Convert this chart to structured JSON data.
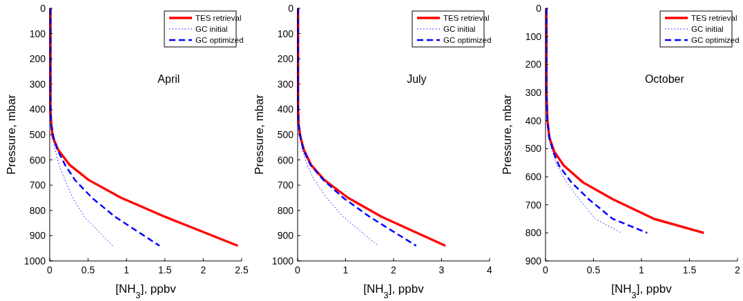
{
  "chart_data": [
    {
      "type": "line",
      "title": "April",
      "xlabel": "[NH$_{3}$], ppbv",
      "ylabel": "Pressure, mbar",
      "xlim": [
        0,
        2.5
      ],
      "xticks": [
        0,
        0.5,
        1,
        1.5,
        2,
        2.5
      ],
      "ylim": [
        1000,
        0
      ],
      "yticks": [
        0,
        100,
        200,
        300,
        400,
        500,
        600,
        700,
        800,
        900,
        1000
      ],
      "grid": false,
      "legend": "top right",
      "series": [
        {
          "name": "TES retrieval",
          "color": "#ff0000",
          "line_style": "solid",
          "x": [
            0.01,
            0.01,
            0.01,
            0.01,
            0.01,
            0.02,
            0.04,
            0.11,
            0.26,
            0.51,
            0.93,
            1.5,
            2.45
          ],
          "values": [
            0,
            100,
            200,
            300,
            400,
            460,
            510,
            560,
            620,
            680,
            750,
            825,
            940
          ]
        },
        {
          "name": "GC initial",
          "color": "#0000ff",
          "line_style": "dotted",
          "x": [
            0.01,
            0.01,
            0.01,
            0.01,
            0.01,
            0.02,
            0.04,
            0.07,
            0.12,
            0.2,
            0.3,
            0.45,
            0.82
          ],
          "values": [
            0,
            100,
            200,
            300,
            400,
            460,
            510,
            560,
            620,
            680,
            750,
            825,
            940
          ]
        },
        {
          "name": "GC optimized",
          "color": "#0000ff",
          "line_style": "dashed",
          "x": [
            0.01,
            0.01,
            0.01,
            0.01,
            0.01,
            0.02,
            0.05,
            0.1,
            0.2,
            0.33,
            0.55,
            0.85,
            1.43
          ],
          "values": [
            0,
            100,
            200,
            300,
            400,
            460,
            510,
            560,
            620,
            680,
            750,
            825,
            940
          ]
        }
      ]
    },
    {
      "type": "line",
      "title": "July",
      "xlabel": "[NH$_{3}$], ppbv",
      "ylabel": "Pressure, mbar",
      "xlim": [
        0,
        4
      ],
      "xticks": [
        0,
        1,
        2,
        3,
        4
      ],
      "ylim": [
        1000,
        0
      ],
      "yticks": [
        0,
        100,
        200,
        300,
        400,
        500,
        600,
        700,
        800,
        900,
        1000
      ],
      "grid": false,
      "legend": "top right",
      "series": [
        {
          "name": "TES retrieval",
          "color": "#ff0000",
          "line_style": "solid",
          "x": [
            0.01,
            0.01,
            0.01,
            0.01,
            0.01,
            0.02,
            0.06,
            0.13,
            0.28,
            0.56,
            1.05,
            1.75,
            3.08
          ],
          "values": [
            0,
            100,
            200,
            300,
            400,
            460,
            510,
            560,
            620,
            680,
            750,
            825,
            940
          ]
        },
        {
          "name": "GC initial",
          "color": "#0000ff",
          "line_style": "dotted",
          "x": [
            0.01,
            0.01,
            0.01,
            0.01,
            0.01,
            0.02,
            0.05,
            0.1,
            0.2,
            0.35,
            0.6,
            0.95,
            1.68
          ],
          "values": [
            0,
            100,
            200,
            300,
            400,
            460,
            510,
            560,
            620,
            680,
            750,
            825,
            940
          ]
        },
        {
          "name": "GC optimized",
          "color": "#0000ff",
          "line_style": "dashed",
          "x": [
            0.01,
            0.01,
            0.01,
            0.01,
            0.01,
            0.02,
            0.06,
            0.12,
            0.27,
            0.54,
            0.95,
            1.5,
            2.47
          ],
          "values": [
            0,
            100,
            200,
            300,
            400,
            460,
            510,
            560,
            620,
            680,
            750,
            825,
            940
          ]
        }
      ]
    },
    {
      "type": "line",
      "title": "October",
      "xlabel": "[NH$_{3}$], ppbv",
      "ylabel": "Pressure, mbar",
      "xlim": [
        0,
        2
      ],
      "xticks": [
        0,
        0.5,
        1,
        1.5,
        2
      ],
      "ylim": [
        900,
        0
      ],
      "yticks": [
        0,
        100,
        200,
        300,
        400,
        500,
        600,
        700,
        800,
        900
      ],
      "grid": false,
      "legend": "top right",
      "series": [
        {
          "name": "TES retrieval",
          "color": "#ff0000",
          "line_style": "solid",
          "x": [
            0.01,
            0.01,
            0.01,
            0.01,
            0.02,
            0.04,
            0.09,
            0.19,
            0.39,
            0.7,
            1.13,
            1.65
          ],
          "values": [
            0,
            100,
            200,
            300,
            400,
            460,
            510,
            560,
            620,
            680,
            750,
            800
          ]
        },
        {
          "name": "GC initial",
          "color": "#0000ff",
          "line_style": "dotted",
          "x": [
            0.01,
            0.01,
            0.01,
            0.01,
            0.02,
            0.03,
            0.07,
            0.12,
            0.22,
            0.35,
            0.52,
            0.79
          ],
          "values": [
            0,
            100,
            200,
            300,
            400,
            460,
            510,
            560,
            620,
            680,
            750,
            800
          ]
        },
        {
          "name": "GC optimized",
          "color": "#0000ff",
          "line_style": "dashed",
          "x": [
            0.01,
            0.01,
            0.01,
            0.01,
            0.02,
            0.04,
            0.08,
            0.14,
            0.27,
            0.45,
            0.7,
            1.06
          ],
          "values": [
            0,
            100,
            200,
            300,
            400,
            460,
            510,
            560,
            620,
            680,
            750,
            800
          ]
        }
      ]
    }
  ]
}
